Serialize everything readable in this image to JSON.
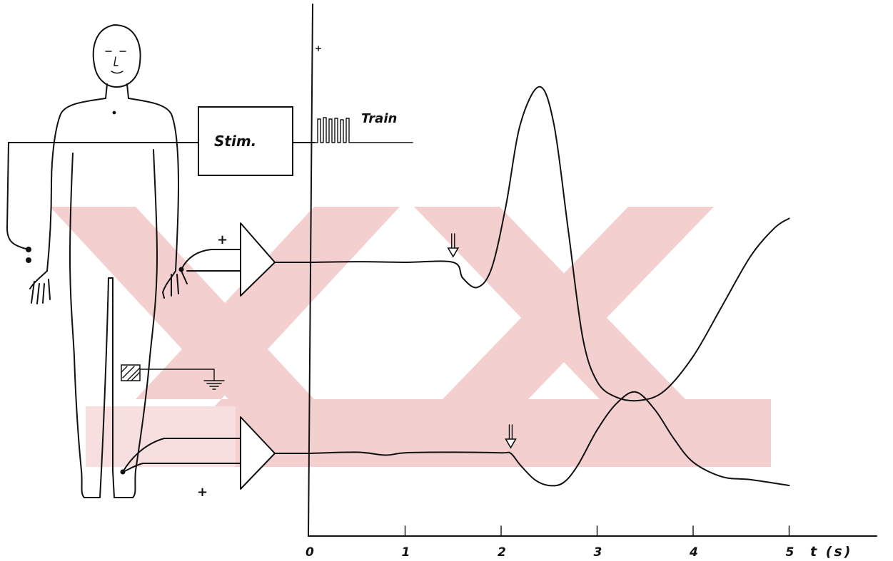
{
  "figure": {
    "stim_label": "Stim.",
    "train_label": "Train",
    "plus_upper": "+",
    "plus_lower": "+",
    "axis_unit_label": "t (s)",
    "y_axis_mark": "+",
    "watermark_color": "#f2c7c7",
    "ink_color": "#111111"
  },
  "chart_data": {
    "type": "line",
    "xlabel": "t (s)",
    "x_ticks": [
      "0",
      "1",
      "2",
      "3",
      "4",
      "5"
    ],
    "xlim": [
      0,
      5
    ],
    "grid": false,
    "series": [
      {
        "x": [
          0,
          0.5,
          1.0,
          1.5,
          1.6,
          1.75,
          1.9,
          2.05,
          2.2,
          2.4,
          2.55,
          2.7,
          2.85,
          3.0,
          3.2,
          3.45,
          3.7,
          4.0,
          4.3,
          4.6,
          4.85,
          5.0
        ],
        "y": [
          0,
          0.01,
          0,
          0,
          -0.25,
          -0.4,
          -0.1,
          0.9,
          2.2,
          2.8,
          2.2,
          0.5,
          -1.2,
          -1.9,
          -2.15,
          -2.2,
          -2.05,
          -1.5,
          -0.7,
          0.1,
          0.55,
          0.7
        ]
      },
      {
        "x": [
          0,
          0.5,
          0.8,
          1.0,
          1.5,
          2.0,
          2.1,
          2.2,
          2.35,
          2.5,
          2.65,
          2.8,
          3.0,
          3.2,
          3.4,
          3.6,
          3.8,
          4.0,
          4.3,
          4.6,
          5.0
        ],
        "y": [
          0,
          0.02,
          -0.03,
          0.01,
          0.02,
          0.01,
          0,
          -0.2,
          -0.45,
          -0.55,
          -0.5,
          -0.2,
          0.4,
          0.85,
          1.05,
          0.75,
          0.25,
          -0.15,
          -0.4,
          -0.45,
          -0.55
        ]
      }
    ],
    "annotations": [
      {
        "type": "arrow",
        "series": 0,
        "x": 1.5
      },
      {
        "type": "arrow",
        "series": 1,
        "x": 2.1
      }
    ]
  }
}
